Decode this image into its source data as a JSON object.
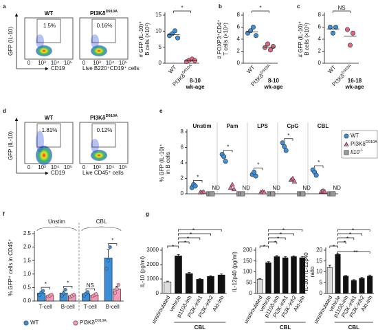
{
  "letters": [
    "a",
    "b",
    "c",
    "d",
    "e",
    "f",
    "g"
  ],
  "flow_panels": [
    {
      "plots": [
        {
          "title": "WT",
          "gate": "1.5%"
        },
        {
          "title": {
            "text": "PI3Kδ",
            "sup": "D910A"
          },
          "gate": "0.16%"
        }
      ],
      "ylabel": "GFP (IL-10)",
      "xlabel": "CD19",
      "population": "Live B220⁺CD19⁺ cells",
      "xticks": [
        "0",
        "10³",
        "10⁴",
        "10⁵"
      ]
    },
    {
      "plots": [
        {
          "title": "WT",
          "gate": "1.81%"
        },
        {
          "title": {
            "text": "PI3Kδ",
            "sup": "D910A"
          },
          "gate": "0.12%"
        }
      ],
      "ylabel": "GFP (IL-10)",
      "xlabel": "CD19",
      "population": "Live CD45⁺ cells",
      "xticks": [
        "0",
        "10³",
        "10⁴",
        "10⁵"
      ]
    }
  ],
  "chart_data": [
    {
      "type": "strip",
      "ylabel": [
        "# GFP (IL-10)⁺",
        "B cells (×10³)"
      ],
      "ylim": [
        0,
        15
      ],
      "yticks": [
        0,
        5,
        10,
        15
      ],
      "categories": [
        "WT",
        {
          "text": "PI3Kδ",
          "sup": "D910A"
        }
      ],
      "colors": [
        "#3d8fd8",
        "#e4647f"
      ],
      "values": [
        [
          8.6,
          9.2,
          10.1,
          7.9
        ],
        [
          0.5,
          1.0,
          1.3,
          0.8
        ]
      ],
      "means": [
        8.9,
        0.9
      ],
      "sig": "*",
      "note": [
        "8-10",
        "wk-age"
      ]
    },
    {
      "type": "strip",
      "ylabel": [
        "# FOXP3⁺CD4⁺",
        "T cells (×10⁴)"
      ],
      "ylim": [
        0,
        8
      ],
      "yticks": [
        0,
        2,
        4,
        6,
        8
      ],
      "categories": [
        "WT",
        {
          "text": "PI3Kδ",
          "sup": "D910A"
        }
      ],
      "colors": [
        "#3d8fd8",
        "#e4647f"
      ],
      "values": [
        [
          5.0,
          5.4,
          6.0,
          4.6
        ],
        [
          2.6,
          3.2,
          2.2,
          2.8
        ]
      ],
      "means": [
        5.2,
        2.7
      ],
      "sig": "*",
      "note": [
        "8-10",
        "wk-age"
      ]
    },
    {
      "type": "strip",
      "ylabel": [
        "# GFP (IL-10)⁺",
        "B cells (×10³)"
      ],
      "ylim": [
        0,
        8
      ],
      "yticks": [
        0,
        2,
        4,
        6,
        8
      ],
      "categories": [
        "WT",
        {
          "text": "PI3Kδ",
          "sup": "D910A"
        }
      ],
      "colors": [
        "#3d8fd8",
        "#e4647f"
      ],
      "values": [
        [
          6.0,
          5.0,
          6.0
        ],
        [
          5.6,
          3.0,
          5.0
        ]
      ],
      "means": [
        5.7,
        4.5
      ],
      "sig": "NS",
      "note": [
        "16-18",
        "wk-age"
      ]
    },
    {
      "type": "strip",
      "ylabel": [
        "% GFP (IL-10)⁺",
        "in B cells"
      ],
      "ylim": [
        0,
        8
      ],
      "yticks": [
        0,
        2,
        4,
        6,
        8
      ],
      "groups": [
        "Unstim",
        "Pam",
        "LPS",
        "CpG",
        "CBL"
      ],
      "series": [
        {
          "name": "WT",
          "color": "#3d8fd8",
          "marker": "circle",
          "values": [
            [
              0.8,
              1.2,
              1.0
            ],
            [
              5.1,
              4.8,
              4.2
            ],
            [
              2.5,
              2.8,
              2.3
            ],
            [
              6.6,
              6.1,
              5.6
            ],
            [
              3.1,
              2.8,
              2.4
            ]
          ]
        },
        {
          "name": {
            "text": "PI3Kδ",
            "sup": "D910A"
          },
          "color": "#e96a8d",
          "marker": "triangle",
          "values": [
            [
              0.2,
              0.2,
              0.25
            ],
            [
              0.8,
              1.2,
              0.6
            ],
            [
              0.2,
              0.3,
              0.2
            ],
            [
              1.8,
              2.0,
              1.6
            ],
            [
              0.3,
              0.4,
              0.3
            ]
          ]
        },
        {
          "name": {
            "text": "Il10",
            "sup": "-/-",
            "style": "italic"
          },
          "color": "#9a9a9a",
          "marker": "square",
          "values": [
            [
              0,
              0,
              0
            ],
            [
              0,
              0,
              0
            ],
            [
              0,
              0,
              0
            ],
            [
              0,
              0,
              0
            ],
            [
              0,
              0,
              0
            ]
          ]
        }
      ],
      "sig": [
        "*",
        "*",
        "*",
        "*",
        "*"
      ],
      "nd": [
        "ND",
        "ND",
        "ND",
        "ND",
        "ND"
      ]
    },
    {
      "type": "bar",
      "ylabel": [
        "% GFP⁺ cells in CD45⁺"
      ],
      "ylim": [
        0,
        2.5
      ],
      "yticks": [
        {
          "value": 0,
          "label": "0.0"
        },
        0.5,
        {
          "value": 1,
          "label": "1.0"
        },
        1.5,
        {
          "value": 2,
          "label": "2.0"
        },
        2.5
      ],
      "groups": [
        "Unstim",
        "CBL"
      ],
      "categories": [
        "T-cell",
        "B-cell",
        "T-cell",
        "B-cell"
      ],
      "series": [
        {
          "name": "WT",
          "color": "#3d8fd8",
          "values": [
            0.3,
            0.3,
            0.27,
            1.6
          ],
          "errors": [
            0.06,
            0.07,
            0.05,
            0.3
          ],
          "points": [
            [
              0.22,
              0.32,
              0.38
            ],
            [
              0.2,
              0.28,
              0.42
            ],
            [
              0.2,
              0.28,
              0.33
            ],
            [
              1.2,
              1.5,
              2.0
            ]
          ]
        },
        {
          "name": {
            "text": "PI3Kδ",
            "sup": "D910A"
          },
          "color": "#f29bb6",
          "values": [
            0.2,
            0.2,
            0.22,
            0.45
          ],
          "errors": [
            0.03,
            0.03,
            0.03,
            0.1
          ],
          "points": [
            [
              0.17,
              0.2,
              0.24
            ],
            [
              0.16,
              0.2,
              0.24
            ],
            [
              0.18,
              0.22,
              0.26
            ],
            [
              0.3,
              0.45,
              0.6
            ]
          ]
        }
      ],
      "sig": [
        "*",
        "*",
        "NS",
        "*"
      ]
    },
    {
      "type": "bar",
      "ylabel": [
        "IL-10 (pg/ml)"
      ],
      "ylim": [
        0,
        3000
      ],
      "yticks": [
        0,
        1000,
        2000,
        3000
      ],
      "categories": [
        "unstimulated",
        "vehicle",
        "p110δ-inh",
        "PI3K-inh1",
        "PI3K-inh2",
        "Akt-inh"
      ],
      "values": [
        800,
        2600,
        1380,
        980,
        1180,
        1280
      ],
      "errors": [
        50,
        90,
        70,
        50,
        50,
        70
      ],
      "bar_colors": [
        "#dcdcdc",
        "#111111",
        "#111111",
        "#111111",
        "#111111",
        "#111111"
      ],
      "group_label": "CBL",
      "sig": [
        "*",
        "*",
        "*",
        "*",
        "*"
      ]
    },
    {
      "type": "bar",
      "ylabel": [
        "IL-12p40 (pg/ml)"
      ],
      "ylim": [
        0,
        200
      ],
      "yticks": [
        0,
        50,
        100,
        150,
        200
      ],
      "categories": [
        "unstimulated",
        "vehicle",
        "p110δ-inh",
        "PI3K-inh1",
        "PI3K-inh2",
        "Akt-inh"
      ],
      "values": [
        65,
        142,
        170,
        165,
        170,
        165
      ],
      "errors": [
        3,
        5,
        5,
        5,
        4,
        5
      ],
      "bar_colors": [
        "#dcdcdc",
        "#111111",
        "#111111",
        "#111111",
        "#111111",
        "#111111"
      ],
      "group_label": "CBL",
      "sig": [
        "*",
        "*",
        "*",
        "*",
        "*"
      ]
    },
    {
      "type": "bar",
      "ylabel": [
        "IL-10 / IL-12p40",
        "ratio"
      ],
      "ylim": [
        0,
        20
      ],
      "yticks": [
        0,
        5,
        10,
        15,
        20
      ],
      "categories": [
        "unstimulated",
        "vehicle",
        "p110δ-inh",
        "PI3K-inh1",
        "PI3K-inh2",
        "Akt-inh"
      ],
      "values": [
        12,
        18,
        8,
        6,
        7,
        8
      ],
      "errors": [
        1,
        0.5,
        0.3,
        0.4,
        0.4,
        0.5
      ],
      "bar_colors": [
        "#dcdcdc",
        "#111111",
        "#111111",
        "#111111",
        "#111111",
        "#111111"
      ],
      "group_label": "CBL",
      "sig": [
        "*",
        "*",
        "*",
        "*",
        "*",
        "**"
      ]
    }
  ]
}
